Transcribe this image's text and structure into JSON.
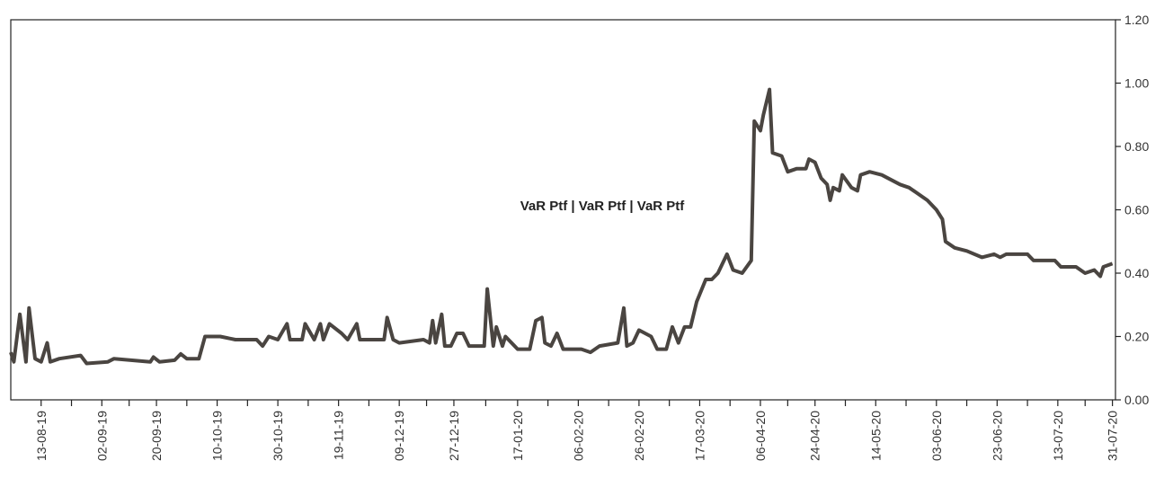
{
  "chart_data": {
    "type": "line",
    "series": [
      {
        "name": "VaR Ptf | VaR Ptf | VaR Ptf",
        "color": "#4a4541",
        "values": [
          0.15,
          0.12,
          0.27,
          0.12,
          0.29,
          0.13,
          0.12,
          0.18,
          0.12,
          0.13,
          0.14,
          0.115,
          0.12,
          0.13,
          0.12,
          0.135,
          0.12,
          0.125,
          0.145,
          0.13,
          0.13,
          0.2,
          0.2,
          0.19,
          0.19,
          0.17,
          0.2,
          0.19,
          0.24,
          0.19,
          0.19,
          0.24,
          0.19,
          0.24,
          0.19,
          0.24,
          0.21,
          0.19,
          0.24,
          0.19,
          0.19,
          0.26,
          0.19,
          0.18,
          0.19,
          0.18,
          0.25,
          0.18,
          0.27,
          0.17,
          0.17,
          0.21,
          0.21,
          0.17,
          0.17,
          0.35,
          0.17,
          0.23,
          0.17,
          0.2,
          0.16,
          0.16,
          0.25,
          0.26,
          0.18,
          0.17,
          0.21,
          0.16,
          0.16,
          0.15,
          0.17,
          0.18,
          0.29,
          0.17,
          0.18,
          0.22,
          0.2,
          0.16,
          0.16,
          0.23,
          0.18,
          0.23,
          0.23,
          0.31,
          0.38,
          0.38,
          0.4,
          0.46,
          0.41,
          0.4,
          0.44,
          0.88,
          0.85,
          0.9,
          0.98,
          0.78,
          0.77,
          0.72,
          0.73,
          0.73,
          0.76,
          0.75,
          0.7,
          0.68,
          0.63,
          0.67,
          0.66,
          0.71,
          0.67,
          0.66,
          0.71,
          0.72,
          0.71,
          0.68,
          0.67,
          0.63,
          0.6,
          0.57,
          0.5,
          0.48,
          0.47,
          0.45,
          0.46,
          0.45,
          0.46,
          0.46,
          0.44,
          0.44,
          0.42,
          0.42,
          0.4,
          0.41,
          0.39,
          0.42,
          0.43
        ]
      }
    ],
    "x": [
      "03-08-19",
      "04-08-19",
      "06-08-19",
      "08-08-19",
      "09-08-19",
      "11-08-19",
      "13-08-19",
      "15-08-19",
      "16-08-19",
      "19-08-19",
      "26-08-19",
      "28-08-19",
      "04-09-19",
      "06-09-19",
      "18-09-19",
      "19-09-19",
      "21-09-19",
      "26-09-19",
      "28-09-19",
      "30-09-19",
      "04-10-19",
      "06-10-19",
      "11-10-19",
      "16-10-19",
      "23-10-19",
      "25-10-19",
      "27-10-19",
      "30-10-19",
      "02-11-19",
      "03-11-19",
      "07-11-19",
      "08-11-19",
      "11-11-19",
      "13-11-19",
      "14-11-19",
      "16-11-19",
      "20-11-19",
      "22-11-19",
      "25-11-19",
      "26-11-19",
      "04-12-19",
      "05-12-19",
      "07-12-19",
      "09-12-19",
      "17-12-19",
      "19-12-19",
      "20-12-19",
      "21-12-19",
      "23-12-19",
      "24-12-19",
      "26-12-19",
      "28-12-19",
      "30-12-19",
      "01-01-20",
      "06-01-20",
      "07-01-20",
      "09-01-20",
      "10-01-20",
      "12-01-20",
      "13-01-20",
      "17-01-20",
      "21-01-20",
      "23-01-20",
      "25-01-20",
      "26-01-20",
      "28-01-20",
      "30-01-20",
      "01-02-20",
      "07-02-20",
      "10-02-20",
      "13-02-20",
      "19-02-20",
      "21-02-20",
      "22-02-20",
      "24-02-20",
      "26-02-20",
      "01-03-20",
      "03-03-20",
      "06-03-20",
      "08-03-20",
      "10-03-20",
      "12-03-20",
      "14-03-20",
      "16-03-20",
      "19-03-20",
      "21-03-20",
      "23-03-20",
      "26-03-20",
      "28-03-20",
      "31-03-20",
      "03-04-20",
      "04-04-20",
      "06-04-20",
      "07-04-20",
      "09-04-20",
      "10-04-20",
      "13-04-20",
      "15-04-20",
      "18-04-20",
      "21-04-20",
      "22-04-20",
      "24-04-20",
      "26-04-20",
      "28-04-20",
      "29-04-20",
      "30-04-20",
      "02-05-20",
      "03-05-20",
      "06-05-20",
      "08-05-20",
      "09-05-20",
      "12-05-20",
      "16-05-20",
      "22-05-20",
      "25-05-20",
      "31-05-20",
      "03-06-20",
      "05-06-20",
      "06-06-20",
      "09-06-20",
      "13-06-20",
      "18-06-20",
      "22-06-20",
      "24-06-20",
      "26-06-20",
      "03-07-20",
      "05-07-20",
      "12-07-20",
      "14-07-20",
      "19-07-20",
      "22-07-20",
      "25-07-20",
      "27-07-20",
      "28-07-20",
      "31-07-20"
    ],
    "xlim": [
      "03-08-19",
      "01-08-20"
    ],
    "xticks": [
      "13-08-19",
      "02-09-19",
      "20-09-19",
      "10-10-19",
      "30-10-19",
      "19-11-19",
      "09-12-19",
      "27-12-19",
      "17-01-20",
      "06-02-20",
      "26-02-20",
      "17-03-20",
      "06-04-20",
      "24-04-20",
      "14-05-20",
      "03-06-20",
      "23-06-20",
      "13-07-20",
      "31-07-20"
    ],
    "ylim": [
      0,
      1.2
    ],
    "yticks": [
      {
        "value": 0,
        "label": "0.00"
      },
      {
        "value": 0.2,
        "label": "0.20"
      },
      {
        "value": 0.4,
        "label": "0.40"
      },
      {
        "value": 0.6,
        "label": "0.60"
      },
      {
        "value": 0.8,
        "label": "0.80"
      },
      {
        "value": 1,
        "label": "1.00"
      },
      {
        "value": 1.2,
        "label": "1.20"
      }
    ],
    "y_axis_side": "right",
    "grid": false
  }
}
